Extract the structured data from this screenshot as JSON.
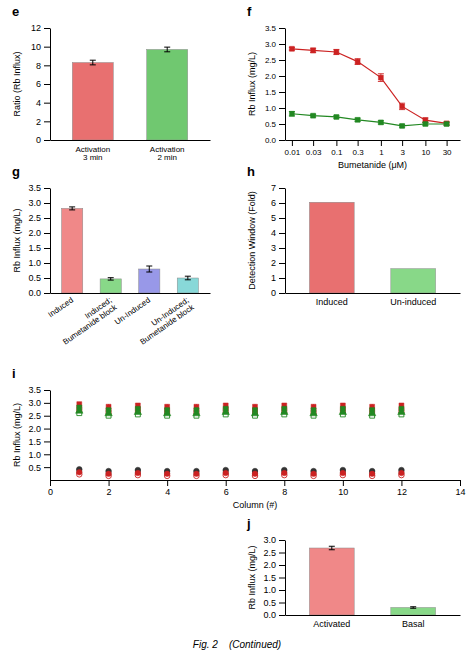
{
  "title": "Fig. 2    (Continued)",
  "chart_data": [
    {
      "type": "bar",
      "title": "e",
      "categories": [
        "Activation\n3 min",
        "Activation\n2 min"
      ],
      "values": [
        8.3,
        9.7
      ],
      "errors": [
        0.25,
        0.25
      ],
      "colors": [
        "#e87070",
        "#70c870"
      ],
      "ylabel": "Ratio (Rb Influx)",
      "ylim": [
        0,
        12
      ],
      "yticks": [
        0,
        2,
        4,
        6,
        8,
        10,
        12
      ]
    },
    {
      "type": "line",
      "title": "f",
      "xlabel": "Bumetanide (μM)",
      "ylabel": "Rb Influx (mg/L)",
      "log": "x",
      "marker": "square",
      "line_style": "solid",
      "x": [
        0.01,
        0.03,
        0.1,
        0.3,
        1,
        3,
        10,
        30
      ],
      "xlim": [
        0.007,
        60
      ],
      "xticks": [
        0.01,
        0.03,
        0.1,
        0.3,
        1,
        3,
        10,
        30
      ],
      "ylim": [
        0,
        3.5
      ],
      "yticks": [
        {
          "value": 0,
          "label": "0.0"
        },
        0.5,
        {
          "value": 1,
          "label": "1.0"
        },
        1.5,
        {
          "value": 2,
          "label": "2.0"
        },
        2.5,
        {
          "value": 3,
          "label": "3.0"
        },
        3.5
      ],
      "series": [
        {
          "color": "#cc2222",
          "values": [
            2.85,
            2.8,
            2.75,
            2.45,
            1.95,
            1.05,
            0.62,
            0.52
          ],
          "errors": [
            0.04,
            0.07,
            0.08,
            0.09,
            0.12,
            0.1,
            0.07,
            0.05
          ]
        },
        {
          "color": "#228822",
          "values": [
            0.82,
            0.76,
            0.72,
            0.63,
            0.55,
            0.44,
            0.5,
            0.5
          ],
          "errors": [
            0.07,
            0.04,
            0.04,
            0.05,
            0.05,
            0.04,
            0.04,
            0.04
          ]
        }
      ]
    },
    {
      "type": "bar",
      "title": "g",
      "categories": [
        "Induced",
        "Induced;\nBumetanide block",
        "Un-Induced",
        "Un-Induced;\nBumetanide block"
      ],
      "values": [
        2.82,
        0.47,
        0.8,
        0.5
      ],
      "errors": [
        0.05,
        0.04,
        0.1,
        0.06
      ],
      "colors": [
        "#f08888",
        "#88d888",
        "#9898e8",
        "#88d8d8"
      ],
      "ylabel": "Rb Influx (mg/L)",
      "ylim": [
        0,
        3.5
      ],
      "yticks": [
        {
          "value": 0,
          "label": "0.0"
        },
        0.5,
        {
          "value": 1,
          "label": "1.0"
        },
        1.5,
        {
          "value": 2,
          "label": "2.0"
        },
        2.5,
        {
          "value": 3,
          "label": "3.0"
        },
        3.5
      ]
    },
    {
      "type": "bar",
      "title": "h",
      "categories": [
        "Induced",
        "Un-induced"
      ],
      "values": [
        6.05,
        1.62
      ],
      "colors": [
        "#e87070",
        "#88d888"
      ],
      "ylabel": "Detection Window (Fold)",
      "ylim": [
        0,
        7
      ],
      "yticks": [
        0,
        1,
        2,
        3,
        4,
        5,
        6,
        7
      ]
    },
    {
      "type": "scatter",
      "title": "i",
      "xlabel": "Column (#)",
      "ylabel": "Rb Influx (mg/L)",
      "x": [
        1,
        2,
        3,
        4,
        5,
        6,
        7,
        8,
        9,
        10,
        11,
        12
      ],
      "xlim": [
        0,
        14
      ],
      "xticks": [
        0,
        2,
        4,
        6,
        8,
        10,
        12,
        14
      ],
      "ylim": [
        0,
        3.5
      ],
      "yticks": [
        0.5,
        {
          "value": 1,
          "label": "1.0"
        },
        1.5,
        {
          "value": 2,
          "label": "2.0"
        },
        2.5,
        {
          "value": 3,
          "label": "3.0"
        },
        3.5
      ],
      "series": [
        {
          "color": "#cc2222",
          "marker": "square",
          "values": [
            2.95,
            2.85,
            2.9,
            2.85,
            2.85,
            2.9,
            2.85,
            2.9,
            2.85,
            2.9,
            2.85,
            2.9
          ]
        },
        {
          "color": "#cc2222",
          "marker": "square-open",
          "values": [
            2.75,
            2.65,
            2.7,
            2.65,
            2.65,
            2.7,
            2.65,
            2.7,
            2.65,
            2.7,
            2.65,
            2.7
          ]
        },
        {
          "color": "#cc2222",
          "marker": "diamond-open",
          "values": [
            2.88,
            2.78,
            2.83,
            2.78,
            2.78,
            2.83,
            2.78,
            2.83,
            2.78,
            2.83,
            2.78,
            2.83
          ]
        },
        {
          "color": "#228822",
          "marker": "square",
          "values": [
            2.82,
            2.72,
            2.77,
            2.72,
            2.72,
            2.77,
            2.72,
            2.77,
            2.72,
            2.77,
            2.72,
            2.77
          ]
        },
        {
          "color": "#228822",
          "marker": "square-open",
          "values": [
            2.6,
            2.5,
            2.55,
            2.5,
            2.5,
            2.55,
            2.5,
            2.55,
            2.5,
            2.55,
            2.5,
            2.55
          ]
        },
        {
          "color": "#228822",
          "marker": "triangle-up",
          "values": [
            2.68,
            2.58,
            2.63,
            2.58,
            2.58,
            2.63,
            2.58,
            2.63,
            2.58,
            2.63,
            2.58,
            2.63
          ]
        },
        {
          "color": "#333333",
          "marker": "square",
          "values": [
            0.35,
            0.28,
            0.32,
            0.28,
            0.28,
            0.32,
            0.28,
            0.32,
            0.28,
            0.32,
            0.28,
            0.32
          ]
        },
        {
          "color": "#333333",
          "marker": "circle",
          "values": [
            0.42,
            0.35,
            0.39,
            0.35,
            0.35,
            0.39,
            0.35,
            0.39,
            0.35,
            0.39,
            0.35,
            0.39
          ]
        },
        {
          "color": "#cc2222",
          "marker": "circle",
          "values": [
            0.3,
            0.24,
            0.27,
            0.24,
            0.24,
            0.27,
            0.24,
            0.27,
            0.24,
            0.27,
            0.24,
            0.27
          ]
        },
        {
          "color": "#cc2222",
          "marker": "circle-open",
          "values": [
            0.22,
            0.16,
            0.19,
            0.16,
            0.16,
            0.19,
            0.16,
            0.19,
            0.16,
            0.19,
            0.16,
            0.19
          ]
        }
      ]
    },
    {
      "type": "bar",
      "title": "j",
      "categories": [
        "Activated",
        "Basal"
      ],
      "values": [
        2.68,
        0.3
      ],
      "errors": [
        0.07,
        0.03
      ],
      "colors": [
        "#f08888",
        "#88d888"
      ],
      "ylabel": "Rb Influx (mg/L)",
      "ylim": [
        0,
        3
      ],
      "yticks": [
        {
          "value": 0,
          "label": "0.0"
        },
        0.5,
        {
          "value": 1,
          "label": "1.0"
        },
        1.5,
        {
          "value": 2,
          "label": "2.0"
        },
        2.5,
        {
          "value": 3,
          "label": "3.0"
        }
      ]
    }
  ]
}
